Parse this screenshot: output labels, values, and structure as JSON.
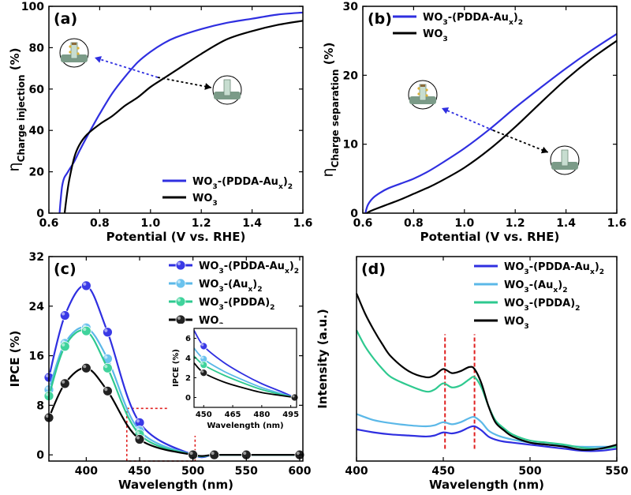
{
  "chart_data": [
    {
      "panel_label": "(a)",
      "type": "line",
      "xlabel": "Potential (V vs. RHE)",
      "ylabel_prefix": "η",
      "ylabel_sub": "Charge injection",
      "ylabel_unit": " (%)",
      "xlim": [
        0.6,
        1.6
      ],
      "ylim": [
        0,
        100
      ],
      "xticks": [
        0.6,
        0.8,
        1.0,
        1.2,
        1.4,
        1.6
      ],
      "yticks": [
        0,
        20,
        40,
        60,
        80,
        100
      ],
      "legend_position": "bottom-right",
      "series": [
        {
          "name": "WO3-(PDDA-Aux)2",
          "legend": [
            {
              "t": "WO"
            },
            {
              "t": "3",
              "s": "sub"
            },
            {
              "t": "-(PDDA-Au"
            },
            {
              "t": "x",
              "s": "sub"
            },
            {
              "t": ")"
            },
            {
              "t": "2",
              "s": "sub"
            }
          ],
          "color": "#2f2fe0",
          "x": [
            0.642,
            0.646,
            0.652,
            0.66,
            0.67,
            0.68,
            0.7,
            0.72,
            0.75,
            0.8,
            0.85,
            0.9,
            0.95,
            1.0,
            1.05,
            1.1,
            1.2,
            1.3,
            1.4,
            1.5,
            1.6
          ],
          "y": [
            0,
            6,
            13,
            17,
            19,
            21,
            25,
            30,
            37,
            48,
            58,
            66,
            73,
            78,
            82,
            85,
            89,
            92,
            94,
            96,
            97
          ]
        },
        {
          "name": "WO3",
          "legend": [
            {
              "t": "WO"
            },
            {
              "t": "3",
              "s": "sub"
            }
          ],
          "color": "#000000",
          "x": [
            0.662,
            0.67,
            0.68,
            0.7,
            0.72,
            0.75,
            0.8,
            0.85,
            0.9,
            0.95,
            1.0,
            1.05,
            1.1,
            1.2,
            1.3,
            1.4,
            1.5,
            1.6
          ],
          "y": [
            0,
            8,
            16,
            27,
            33,
            38,
            43,
            47,
            52,
            56,
            61,
            65,
            69,
            77,
            84,
            88,
            91,
            93
          ]
        }
      ],
      "annotations": [
        "electrode-with-particles-icon",
        "bare-electrode-icon"
      ]
    },
    {
      "panel_label": "(b)",
      "type": "line",
      "xlabel": "Potential (V vs. RHE)",
      "ylabel_prefix": "η",
      "ylabel_sub": "Charge separation",
      "ylabel_unit": " (%)",
      "xlim": [
        0.6,
        1.6
      ],
      "ylim": [
        0,
        30
      ],
      "xticks": [
        0.6,
        0.8,
        1.0,
        1.2,
        1.4,
        1.6
      ],
      "yticks": [
        0,
        10,
        20,
        30
      ],
      "legend_position": "top-left",
      "series": [
        {
          "name": "WO3-(PDDA-Aux)2",
          "legend": [
            {
              "t": "WO"
            },
            {
              "t": "3",
              "s": "sub"
            },
            {
              "t": "-(PDDA-Au"
            },
            {
              "t": "x",
              "s": "sub"
            },
            {
              "t": ")"
            },
            {
              "t": "2",
              "s": "sub"
            }
          ],
          "color": "#2f2fe0",
          "x": [
            0.61,
            0.62,
            0.64,
            0.67,
            0.7,
            0.75,
            0.8,
            0.85,
            0.9,
            1.0,
            1.1,
            1.2,
            1.3,
            1.4,
            1.5,
            1.6
          ],
          "y": [
            0,
            1.2,
            2.2,
            3.0,
            3.6,
            4.3,
            5.0,
            5.9,
            7.0,
            9.4,
            12.2,
            15.3,
            18.2,
            21.0,
            23.6,
            26.0
          ]
        },
        {
          "name": "WO3",
          "legend": [
            {
              "t": "WO"
            },
            {
              "t": "3",
              "s": "sub"
            }
          ],
          "color": "#000000",
          "x": [
            0.615,
            0.63,
            0.65,
            0.7,
            0.75,
            0.8,
            0.85,
            0.9,
            1.0,
            1.1,
            1.2,
            1.3,
            1.4,
            1.5,
            1.6
          ],
          "y": [
            0,
            0.3,
            0.6,
            1.3,
            2.0,
            2.8,
            3.6,
            4.5,
            6.6,
            9.3,
            12.5,
            16.0,
            19.4,
            22.4,
            25.0
          ]
        }
      ],
      "annotations": [
        "electrode-with-particles-icon",
        "bare-electrode-icon"
      ]
    },
    {
      "panel_label": "(c)",
      "type": "line",
      "xlabel": "Wavelength (nm)",
      "ylabel": "IPCE (%)",
      "xlim": [
        365,
        603
      ],
      "ylim": [
        -1,
        32
      ],
      "xticks": [
        400,
        450,
        500,
        550,
        600
      ],
      "yticks": [
        0,
        8,
        16,
        24,
        32
      ],
      "legend_position": "top-right",
      "series": [
        {
          "name": "WO3-(PDDA-Aux)2",
          "legend": [
            {
              "t": "WO"
            },
            {
              "t": "3",
              "s": "sub"
            },
            {
              "t": "-(PDDA-Au"
            },
            {
              "t": "x",
              "s": "sub"
            },
            {
              "t": ")"
            },
            {
              "t": "2",
              "s": "sub"
            }
          ],
          "color": "#2f2fe0",
          "marker": "#3a3ae6",
          "x": [
            365,
            380,
            400,
            420,
            450,
            500,
            520,
            550,
            600
          ],
          "y": [
            12.5,
            22.5,
            27.3,
            19.8,
            5.2,
            0,
            0,
            0,
            0
          ]
        },
        {
          "name": "WO3-(Aux)2",
          "legend": [
            {
              "t": "WO"
            },
            {
              "t": "3",
              "s": "sub"
            },
            {
              "t": "-(Au"
            },
            {
              "t": "x",
              "s": "sub"
            },
            {
              "t": ")"
            },
            {
              "t": "2",
              "s": "sub"
            }
          ],
          "color": "#5bb8e8",
          "marker": "#6cc3ee",
          "x": [
            365,
            380,
            400,
            420,
            450,
            500,
            520,
            550,
            600
          ],
          "y": [
            10.5,
            18.0,
            20.5,
            15.5,
            3.9,
            0,
            0,
            0,
            0
          ]
        },
        {
          "name": "WO3-(PDDA)2",
          "legend": [
            {
              "t": "WO"
            },
            {
              "t": "3",
              "s": "sub"
            },
            {
              "t": "-(PDDA)"
            },
            {
              "t": "2",
              "s": "sub"
            }
          ],
          "color": "#2ec98f",
          "marker": "#40d39c",
          "x": [
            365,
            380,
            400,
            420,
            450,
            500,
            520,
            550,
            600
          ],
          "y": [
            9.5,
            17.5,
            20.0,
            14.0,
            3.3,
            0,
            0,
            0,
            0
          ]
        },
        {
          "name": "WO3",
          "legend": [
            {
              "t": "WO"
            },
            {
              "t": "3",
              "s": "sub"
            }
          ],
          "color": "#000000",
          "marker": "#222222",
          "x": [
            365,
            380,
            400,
            420,
            450,
            500,
            520,
            550,
            600
          ],
          "y": [
            6.0,
            11.5,
            14.0,
            10.3,
            2.5,
            0,
            0,
            0,
            0
          ]
        }
      ],
      "inset": {
        "xlabel": "Wavelength (nm)",
        "ylabel": "IPCE (%)",
        "xlim": [
          445,
          498
        ],
        "ylim": [
          -1,
          7
        ],
        "xticks": [
          450,
          465,
          480,
          495
        ],
        "yticks": [
          0,
          2,
          4,
          6
        ],
        "series": [
          {
            "color": "#2f2fe0",
            "marker": "#3a3ae6",
            "x": [
              445,
              450,
              460,
              470,
              480,
              490,
              497
            ],
            "y": [
              6.8,
              5.2,
              3.6,
              2.4,
              1.4,
              0.6,
              0
            ]
          },
          {
            "color": "#5bb8e8",
            "marker": "#6cc3ee",
            "x": [
              445,
              450,
              460,
              470,
              480,
              490,
              497
            ],
            "y": [
              5.0,
              3.9,
              2.7,
              1.8,
              1.0,
              0.4,
              0
            ]
          },
          {
            "color": "#2ec98f",
            "marker": "#40d39c",
            "x": [
              445,
              450,
              460,
              470,
              480,
              490,
              497
            ],
            "y": [
              4.2,
              3.3,
              2.3,
              1.5,
              0.8,
              0.3,
              0
            ]
          },
          {
            "color": "#000000",
            "marker": "#222222",
            "x": [
              445,
              450,
              460,
              470,
              480,
              490,
              497
            ],
            "y": [
              3.5,
              2.5,
              1.6,
              1.0,
              0.5,
              0.2,
              0
            ]
          }
        ],
        "markers_x": [
          450,
          497
        ]
      },
      "highlight_box": {
        "x": [
          438,
          502
        ],
        "y": [
          -1,
          7.5
        ],
        "color": "#e02020"
      }
    },
    {
      "panel_label": "(d)",
      "type": "line",
      "xlabel": "Wavelength (nm)",
      "ylabel": "Intensity (a.u.)",
      "xlim": [
        400,
        550
      ],
      "ylim": [
        0,
        1
      ],
      "xticks": [
        400,
        450,
        500,
        550
      ],
      "yticks": [],
      "legend_position": "top-right",
      "series": [
        {
          "name": "WO3-(PDDA-Aux)2",
          "legend": [
            {
              "t": "WO"
            },
            {
              "t": "3",
              "s": "sub"
            },
            {
              "t": "-(PDDA-Au"
            },
            {
              "t": "x",
              "s": "sub"
            },
            {
              "t": ")"
            },
            {
              "t": "2",
              "s": "sub"
            }
          ],
          "color": "#2f2fe0",
          "x": [
            400,
            410,
            420,
            430,
            440,
            445,
            450,
            455,
            460,
            465,
            468,
            472,
            476,
            480,
            485,
            490,
            500,
            510,
            520,
            530,
            540,
            550
          ],
          "y": [
            0.155,
            0.14,
            0.13,
            0.125,
            0.12,
            0.125,
            0.14,
            0.135,
            0.145,
            0.165,
            0.17,
            0.15,
            0.12,
            0.105,
            0.095,
            0.09,
            0.08,
            0.07,
            0.06,
            0.05,
            0.05,
            0.06
          ]
        },
        {
          "name": "WO3-(Aux)2",
          "legend": [
            {
              "t": "WO"
            },
            {
              "t": "3",
              "s": "sub"
            },
            {
              "t": "-(Au"
            },
            {
              "t": "x",
              "s": "sub"
            },
            {
              "t": ")"
            },
            {
              "t": "2",
              "s": "sub"
            }
          ],
          "color": "#5bb8e8",
          "x": [
            400,
            410,
            420,
            430,
            440,
            445,
            450,
            455,
            460,
            465,
            468,
            472,
            476,
            480,
            485,
            490,
            500,
            510,
            520,
            530,
            540,
            550
          ],
          "y": [
            0.23,
            0.2,
            0.185,
            0.175,
            0.17,
            0.175,
            0.19,
            0.18,
            0.19,
            0.21,
            0.215,
            0.19,
            0.15,
            0.13,
            0.115,
            0.105,
            0.09,
            0.08,
            0.075,
            0.07,
            0.07,
            0.07
          ]
        },
        {
          "name": "WO3-(PDDA)2",
          "legend": [
            {
              "t": "WO"
            },
            {
              "t": "3",
              "s": "sub"
            },
            {
              "t": "-(PDDA)"
            },
            {
              "t": "2",
              "s": "sub"
            }
          ],
          "color": "#2ec98f",
          "x": [
            400,
            405,
            410,
            415,
            420,
            430,
            440,
            445,
            450,
            455,
            460,
            465,
            468,
            472,
            476,
            480,
            485,
            490,
            500,
            510,
            520,
            530,
            540,
            550
          ],
          "y": [
            0.64,
            0.56,
            0.5,
            0.45,
            0.41,
            0.37,
            0.34,
            0.35,
            0.38,
            0.36,
            0.37,
            0.4,
            0.41,
            0.36,
            0.27,
            0.2,
            0.16,
            0.13,
            0.1,
            0.09,
            0.08,
            0.065,
            0.06,
            0.07
          ]
        },
        {
          "name": "WO3",
          "legend": [
            {
              "t": "WO"
            },
            {
              "t": "3",
              "s": "sub"
            }
          ],
          "color": "#000000",
          "x": [
            400,
            405,
            410,
            415,
            420,
            430,
            440,
            445,
            450,
            455,
            460,
            465,
            468,
            472,
            476,
            480,
            485,
            490,
            500,
            510,
            520,
            530,
            540,
            550
          ],
          "y": [
            0.82,
            0.72,
            0.64,
            0.57,
            0.51,
            0.44,
            0.41,
            0.42,
            0.45,
            0.43,
            0.44,
            0.46,
            0.45,
            0.38,
            0.27,
            0.19,
            0.15,
            0.12,
            0.09,
            0.08,
            0.07,
            0.055,
            0.06,
            0.08
          ]
        }
      ],
      "vlines": [
        {
          "x": 451,
          "color": "#e02020"
        },
        {
          "x": 468,
          "color": "#e02020"
        }
      ]
    }
  ]
}
